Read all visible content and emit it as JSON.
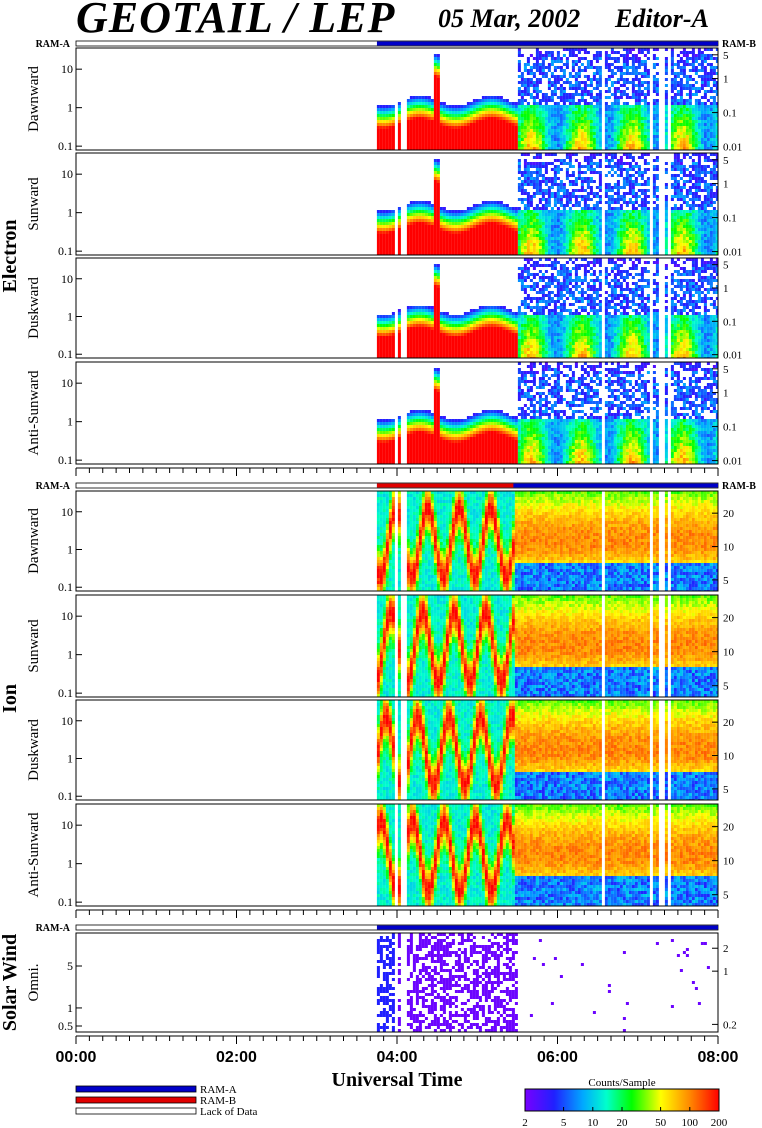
{
  "header": {
    "instrument": "GEOTAIL / LEP",
    "date": "05 Mar, 2002",
    "editor": "Editor-A"
  },
  "groups": [
    {
      "label": "Electron"
    },
    {
      "label": "Ion"
    },
    {
      "label": "Solar Wind"
    }
  ],
  "ram_labels": {
    "a": "RAM-A",
    "b": "RAM-B"
  },
  "colors": {
    "ram_a": "#0000c8",
    "ram_b": "#e00000"
  },
  "chart_data": {
    "type": "heatmap",
    "xlabel": "Universal Time",
    "x_range": [
      "00:00",
      "08:00"
    ],
    "x_ticks": [
      "00:00",
      "02:00",
      "04:00",
      "06:00",
      "08:00"
    ],
    "data_start": "03:45",
    "data_gaps": [
      "03:58",
      "04:04",
      "06:33",
      "07:10",
      "07:15",
      "07:18",
      "07:23"
    ],
    "panels": [
      {
        "group": "Electron",
        "ylabel": "Dawnward",
        "yticks": [
          "0.1",
          "1",
          "10"
        ],
        "rticks": [
          "0.01",
          "0.1",
          "1",
          "5"
        ]
      },
      {
        "group": "Electron",
        "ylabel": "Sunward",
        "yticks": [
          "0.1",
          "1",
          "10"
        ],
        "rticks": [
          "0.01",
          "0.1",
          "1",
          "5"
        ]
      },
      {
        "group": "Electron",
        "ylabel": "Duskward",
        "yticks": [
          "0.1",
          "1",
          "10"
        ],
        "rticks": [
          "0.01",
          "0.1",
          "1",
          "5"
        ]
      },
      {
        "group": "Electron",
        "ylabel": "Anti-Sunward",
        "yticks": [
          "0.1",
          "1",
          "10"
        ],
        "rticks": [
          "0.01",
          "0.1",
          "1",
          "5"
        ]
      },
      {
        "group": "Ion",
        "ylabel": "Dawnward",
        "yticks": [
          "0.1",
          "1",
          "10"
        ],
        "rticks": [
          "5",
          "10",
          "20"
        ]
      },
      {
        "group": "Ion",
        "ylabel": "Sunward",
        "yticks": [
          "0.1",
          "1",
          "10"
        ],
        "rticks": [
          "5",
          "10",
          "20"
        ]
      },
      {
        "group": "Ion",
        "ylabel": "Duskward",
        "yticks": [
          "0.1",
          "1",
          "10"
        ],
        "rticks": [
          "5",
          "10",
          "20"
        ]
      },
      {
        "group": "Ion",
        "ylabel": "Anti-Sunward",
        "yticks": [
          "0.1",
          "1",
          "10"
        ],
        "rticks": [
          "5",
          "10",
          "20"
        ]
      },
      {
        "group": "Solar Wind",
        "ylabel": "Omni.",
        "yticks": [
          "0.5",
          "1",
          "5"
        ],
        "rticks": [
          "0.2",
          "1",
          "2"
        ]
      }
    ],
    "legend": [
      {
        "label": "RAM-A",
        "color": "#0000c8"
      },
      {
        "label": "RAM-B",
        "color": "#e00000"
      },
      {
        "label": "Lack of Data",
        "color": "#ffffff"
      }
    ],
    "colorbar": {
      "title": "Counts/Sample",
      "ticks": [
        "2",
        "5",
        "10",
        "20",
        "50",
        "100",
        "200"
      ],
      "range": [
        2,
        200
      ],
      "scale": "log"
    }
  }
}
